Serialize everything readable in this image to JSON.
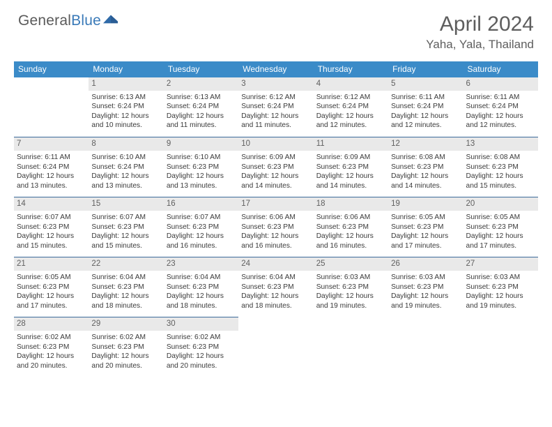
{
  "brand": {
    "t1": "General",
    "t2": "Blue"
  },
  "title": "April 2024",
  "location": "Yaha, Yala, Thailand",
  "colors": {
    "header_bg": "#3b8bc8",
    "rule": "#3b6a9a",
    "daynum_bg": "#e9e9e9",
    "text": "#3a3a3a",
    "brand_blue": "#3a7ab8"
  },
  "dayHeaders": [
    "Sunday",
    "Monday",
    "Tuesday",
    "Wednesday",
    "Thursday",
    "Friday",
    "Saturday"
  ],
  "weeks": [
    [
      null,
      {
        "n": "1",
        "sr": "6:13 AM",
        "ss": "6:24 PM",
        "dl": "12 hours and 10 minutes."
      },
      {
        "n": "2",
        "sr": "6:13 AM",
        "ss": "6:24 PM",
        "dl": "12 hours and 11 minutes."
      },
      {
        "n": "3",
        "sr": "6:12 AM",
        "ss": "6:24 PM",
        "dl": "12 hours and 11 minutes."
      },
      {
        "n": "4",
        "sr": "6:12 AM",
        "ss": "6:24 PM",
        "dl": "12 hours and 12 minutes."
      },
      {
        "n": "5",
        "sr": "6:11 AM",
        "ss": "6:24 PM",
        "dl": "12 hours and 12 minutes."
      },
      {
        "n": "6",
        "sr": "6:11 AM",
        "ss": "6:24 PM",
        "dl": "12 hours and 12 minutes."
      }
    ],
    [
      {
        "n": "7",
        "sr": "6:11 AM",
        "ss": "6:24 PM",
        "dl": "12 hours and 13 minutes."
      },
      {
        "n": "8",
        "sr": "6:10 AM",
        "ss": "6:24 PM",
        "dl": "12 hours and 13 minutes."
      },
      {
        "n": "9",
        "sr": "6:10 AM",
        "ss": "6:23 PM",
        "dl": "12 hours and 13 minutes."
      },
      {
        "n": "10",
        "sr": "6:09 AM",
        "ss": "6:23 PM",
        "dl": "12 hours and 14 minutes."
      },
      {
        "n": "11",
        "sr": "6:09 AM",
        "ss": "6:23 PM",
        "dl": "12 hours and 14 minutes."
      },
      {
        "n": "12",
        "sr": "6:08 AM",
        "ss": "6:23 PM",
        "dl": "12 hours and 14 minutes."
      },
      {
        "n": "13",
        "sr": "6:08 AM",
        "ss": "6:23 PM",
        "dl": "12 hours and 15 minutes."
      }
    ],
    [
      {
        "n": "14",
        "sr": "6:07 AM",
        "ss": "6:23 PM",
        "dl": "12 hours and 15 minutes."
      },
      {
        "n": "15",
        "sr": "6:07 AM",
        "ss": "6:23 PM",
        "dl": "12 hours and 15 minutes."
      },
      {
        "n": "16",
        "sr": "6:07 AM",
        "ss": "6:23 PM",
        "dl": "12 hours and 16 minutes."
      },
      {
        "n": "17",
        "sr": "6:06 AM",
        "ss": "6:23 PM",
        "dl": "12 hours and 16 minutes."
      },
      {
        "n": "18",
        "sr": "6:06 AM",
        "ss": "6:23 PM",
        "dl": "12 hours and 16 minutes."
      },
      {
        "n": "19",
        "sr": "6:05 AM",
        "ss": "6:23 PM",
        "dl": "12 hours and 17 minutes."
      },
      {
        "n": "20",
        "sr": "6:05 AM",
        "ss": "6:23 PM",
        "dl": "12 hours and 17 minutes."
      }
    ],
    [
      {
        "n": "21",
        "sr": "6:05 AM",
        "ss": "6:23 PM",
        "dl": "12 hours and 17 minutes."
      },
      {
        "n": "22",
        "sr": "6:04 AM",
        "ss": "6:23 PM",
        "dl": "12 hours and 18 minutes."
      },
      {
        "n": "23",
        "sr": "6:04 AM",
        "ss": "6:23 PM",
        "dl": "12 hours and 18 minutes."
      },
      {
        "n": "24",
        "sr": "6:04 AM",
        "ss": "6:23 PM",
        "dl": "12 hours and 18 minutes."
      },
      {
        "n": "25",
        "sr": "6:03 AM",
        "ss": "6:23 PM",
        "dl": "12 hours and 19 minutes."
      },
      {
        "n": "26",
        "sr": "6:03 AM",
        "ss": "6:23 PM",
        "dl": "12 hours and 19 minutes."
      },
      {
        "n": "27",
        "sr": "6:03 AM",
        "ss": "6:23 PM",
        "dl": "12 hours and 19 minutes."
      }
    ],
    [
      {
        "n": "28",
        "sr": "6:02 AM",
        "ss": "6:23 PM",
        "dl": "12 hours and 20 minutes."
      },
      {
        "n": "29",
        "sr": "6:02 AM",
        "ss": "6:23 PM",
        "dl": "12 hours and 20 minutes."
      },
      {
        "n": "30",
        "sr": "6:02 AM",
        "ss": "6:23 PM",
        "dl": "12 hours and 20 minutes."
      },
      null,
      null,
      null,
      null
    ]
  ],
  "labels": {
    "sunrise": "Sunrise:",
    "sunset": "Sunset:",
    "daylight": "Daylight:"
  }
}
